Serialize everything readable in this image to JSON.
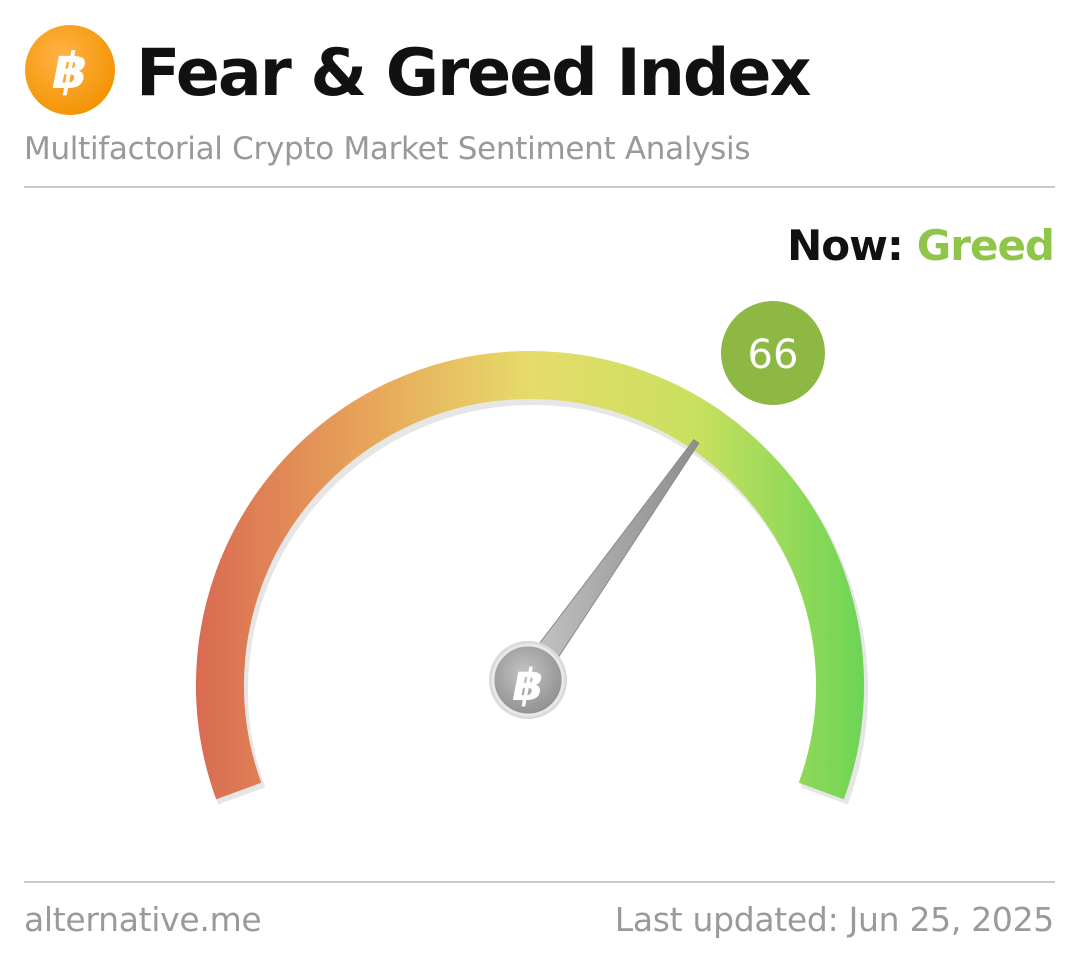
{
  "header": {
    "title": "Fear & Greed Index",
    "subtitle": "Multifactorial Crypto Market Sentiment Analysis",
    "logo_icon": "bitcoin-icon",
    "logo_color": "#f7931a"
  },
  "status": {
    "label": "Now:",
    "classification": "Greed",
    "classification_color": "#8fc549"
  },
  "gauge": {
    "value": 66,
    "value_text": "66",
    "min": 0,
    "max": 100,
    "badge_color": "#8db843",
    "hub_icon": "bitcoin-icon",
    "colors": {
      "fear_end": "#d96a52",
      "mid": "#e6dc6a",
      "greed_end": "#6cd455"
    }
  },
  "footer": {
    "source": "alternative.me",
    "last_updated": "Last updated: Jun 25, 2025"
  }
}
